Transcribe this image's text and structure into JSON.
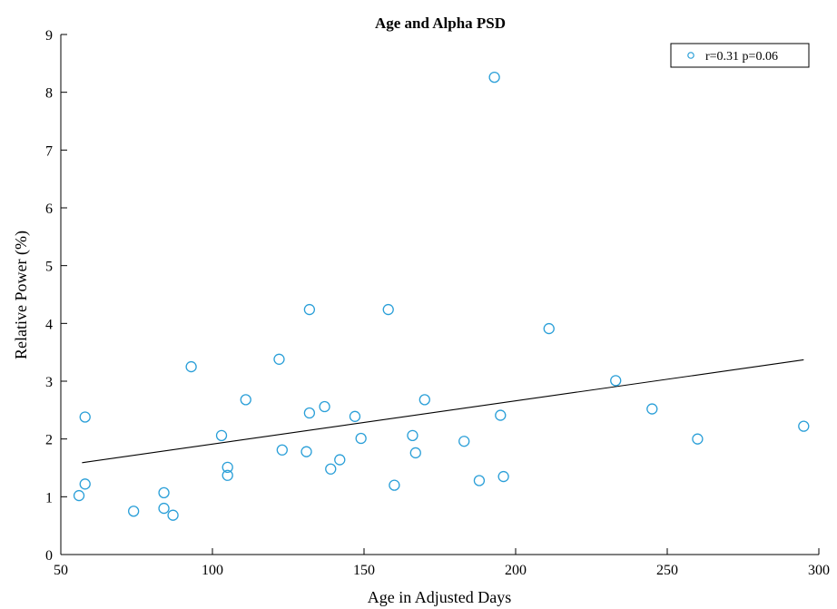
{
  "chart_data": {
    "type": "scatter",
    "title": "Age and Alpha PSD",
    "xlabel": "Age in Adjusted Days",
    "ylabel": "Relative Power (%)",
    "xlim": [
      50,
      300
    ],
    "ylim": [
      0,
      9
    ],
    "xticks": [
      "50",
      "100",
      "150",
      "200",
      "250",
      "300"
    ],
    "yticks": [
      "0",
      "1",
      "2",
      "3",
      "4",
      "5",
      "6",
      "7",
      "8",
      "9"
    ],
    "grid": false,
    "legend": {
      "label": "r=0.31 p=0.06",
      "placement": "top-right"
    },
    "colors": {
      "marker": "#2a9fd8",
      "fit_line": "#000000"
    },
    "series": [
      {
        "name": "r=0.31 p=0.06",
        "points": [
          [
            56,
            1.02
          ],
          [
            58,
            1.22
          ],
          [
            58,
            2.38
          ],
          [
            74,
            0.75
          ],
          [
            84,
            1.07
          ],
          [
            84,
            0.8
          ],
          [
            87,
            0.68
          ],
          [
            93,
            3.25
          ],
          [
            103,
            2.06
          ],
          [
            105,
            1.51
          ],
          [
            105,
            1.37
          ],
          [
            111,
            2.68
          ],
          [
            122,
            3.38
          ],
          [
            123,
            1.81
          ],
          [
            131,
            1.78
          ],
          [
            132,
            2.45
          ],
          [
            132,
            4.24
          ],
          [
            137,
            2.56
          ],
          [
            139,
            1.48
          ],
          [
            142,
            1.64
          ],
          [
            147,
            2.39
          ],
          [
            149,
            2.01
          ],
          [
            158,
            4.24
          ],
          [
            160,
            1.2
          ],
          [
            166,
            2.06
          ],
          [
            167,
            1.76
          ],
          [
            170,
            2.68
          ],
          [
            183,
            1.96
          ],
          [
            188,
            1.28
          ],
          [
            193,
            8.26
          ],
          [
            195,
            2.41
          ],
          [
            196,
            1.35
          ],
          [
            211,
            3.91
          ],
          [
            233,
            3.01
          ],
          [
            245,
            2.52
          ],
          [
            260,
            2.0
          ],
          [
            295,
            2.22
          ]
        ]
      }
    ],
    "fit_line": {
      "x": [
        57,
        295
      ],
      "y": [
        1.59,
        3.37
      ]
    }
  }
}
